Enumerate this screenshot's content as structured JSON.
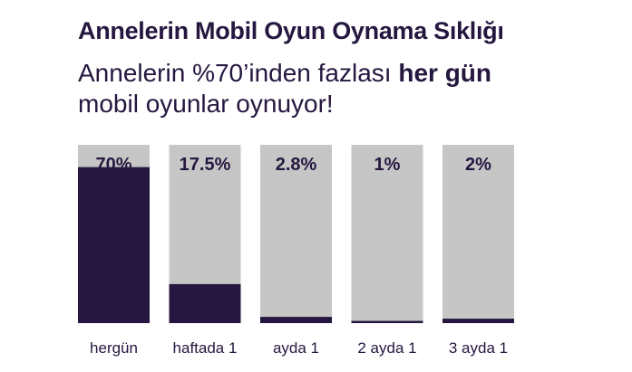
{
  "header": {
    "title": "Annelerin Mobil Oyun Oynama Sıklığı",
    "subtitle_line1_prefix": "Annelerin %70’inden fazlası ",
    "subtitle_line1_bold": "her gün",
    "subtitle_line2": "mobil oyunlar oynuyor!"
  },
  "colors": {
    "bar_fill": "#25173f",
    "bar_track": "#c6c6c6",
    "text": "#25173f"
  },
  "chart_data": {
    "type": "bar",
    "categories": [
      "hergün",
      "haftada 1",
      "ayda 1",
      "2 ayda 1",
      "3 ayda 1"
    ],
    "values": [
      70,
      17.5,
      2.8,
      1,
      2
    ],
    "value_labels": [
      "70%",
      "17.5%",
      "2.8%",
      "1%",
      "2%"
    ],
    "unit": "%",
    "ylim": [
      0,
      80
    ],
    "grid": false,
    "legend": "none",
    "title": "Annelerin Mobil Oyun Oynama Sıklığı",
    "xlabel": "",
    "ylabel": ""
  }
}
